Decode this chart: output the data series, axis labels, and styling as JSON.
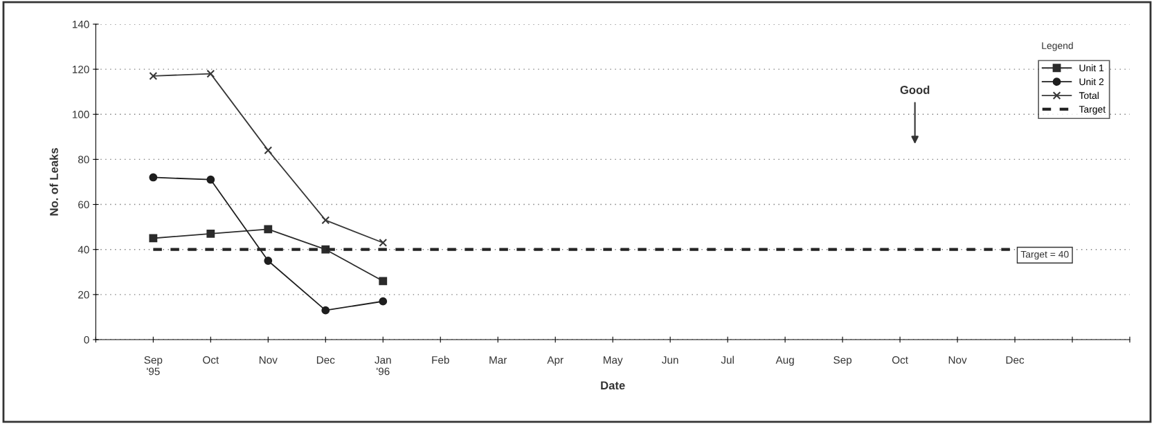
{
  "chart_data": {
    "type": "line",
    "xlabel": "Date",
    "ylabel": "No. of Leaks",
    "legend_title": "Legend",
    "categories": [
      "Sep\n'95",
      "Oct",
      "Nov",
      "Dec",
      "Jan\n'96",
      "Feb",
      "Mar",
      "Apr",
      "May",
      "Jun",
      "Jul",
      "Aug",
      "Sep",
      "Oct",
      "Nov",
      "Dec",
      null,
      null
    ],
    "series": [
      {
        "name": "Unit 1",
        "color": "#2b2b2b",
        "marker": "square",
        "values": [
          45,
          47,
          49,
          40,
          26,
          null,
          null,
          null,
          null,
          null,
          null,
          null,
          null,
          null,
          null,
          null,
          null,
          null
        ]
      },
      {
        "name": "Unit 2",
        "color": "#1e1e1e",
        "marker": "circle",
        "values": [
          72,
          71,
          35,
          13,
          17,
          null,
          null,
          null,
          null,
          null,
          null,
          null,
          null,
          null,
          null,
          null,
          null,
          null
        ]
      },
      {
        "name": "Total",
        "color": "#383838",
        "marker": "cross",
        "values": [
          117,
          118,
          84,
          53,
          43,
          null,
          null,
          null,
          null,
          null,
          null,
          null,
          null,
          null,
          null,
          null,
          null,
          null
        ]
      },
      {
        "name": "Target",
        "color": "#242424",
        "marker": "none",
        "line_style": "dashed",
        "values": [
          40,
          40,
          40,
          40,
          40,
          40,
          40,
          40,
          40,
          40,
          40,
          40,
          40,
          40,
          40,
          40,
          null,
          null
        ]
      }
    ],
    "ylim": [
      0,
      140
    ],
    "yticks": [
      0,
      20,
      40,
      60,
      80,
      100,
      120,
      140
    ],
    "grid": "y",
    "legend": "top right",
    "annotations": [
      "Good",
      "Target = 40"
    ]
  }
}
